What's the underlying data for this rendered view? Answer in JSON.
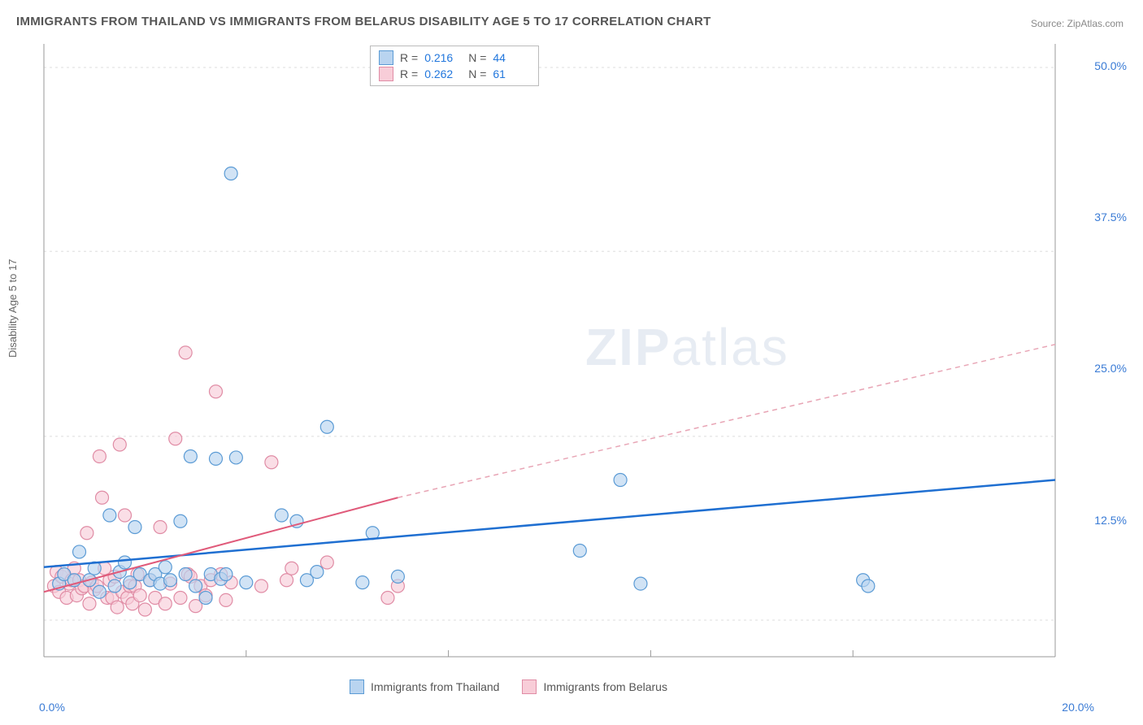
{
  "title": "IMMIGRANTS FROM THAILAND VS IMMIGRANTS FROM BELARUS DISABILITY AGE 5 TO 17 CORRELATION CHART",
  "source": "Source: ZipAtlas.com",
  "y_axis_label": "Disability Age 5 to 17",
  "watermark_a": "ZIP",
  "watermark_b": "atlas",
  "chart": {
    "type": "scatter",
    "background_color": "#ffffff",
    "grid_color": "#dddddd",
    "axis_color": "#999999",
    "xlim": [
      0,
      20
    ],
    "ylim": [
      0,
      52
    ],
    "x_ticks": [
      0.0,
      20.0
    ],
    "x_tick_labels": [
      "0.0%",
      "20.0%"
    ],
    "y_ticks": [
      12.5,
      25.0,
      37.5,
      50.0
    ],
    "y_tick_labels": [
      "12.5%",
      "25.0%",
      "37.5%",
      "50.0%"
    ],
    "y_minor_gridlines": [
      3.1,
      18.7,
      34.4,
      50.0
    ],
    "x_minor_ticks_count": 5,
    "legend_series": [
      {
        "label": "Immigrants from Thailand",
        "fill": "#b9d4f0",
        "stroke": "#5b9bd5"
      },
      {
        "label": "Immigrants from Belarus",
        "fill": "#f8cdd8",
        "stroke": "#e08ca5"
      }
    ],
    "stats": [
      {
        "r_label": "R =",
        "r": "0.216",
        "n_label": "N =",
        "n": "44",
        "fill": "#b9d4f0",
        "stroke": "#5b9bd5"
      },
      {
        "r_label": "R =",
        "r": "0.262",
        "n_label": "N =",
        "n": "61",
        "fill": "#f8cdd8",
        "stroke": "#e08ca5"
      }
    ],
    "marker_radius": 8,
    "marker_opacity": 0.65,
    "series": [
      {
        "name": "thailand",
        "fill": "#b9d4f0",
        "stroke": "#5b9bd5",
        "points": [
          [
            0.3,
            6.2
          ],
          [
            0.4,
            7.0
          ],
          [
            0.6,
            6.5
          ],
          [
            0.7,
            8.9
          ],
          [
            0.9,
            6.5
          ],
          [
            1.0,
            7.5
          ],
          [
            1.1,
            5.5
          ],
          [
            1.3,
            12.0
          ],
          [
            1.4,
            6.0
          ],
          [
            1.5,
            7.2
          ],
          [
            1.6,
            8.0
          ],
          [
            1.7,
            6.3
          ],
          [
            1.8,
            11.0
          ],
          [
            1.9,
            7.0
          ],
          [
            2.1,
            6.5
          ],
          [
            2.2,
            7.0
          ],
          [
            2.3,
            6.2
          ],
          [
            2.4,
            7.6
          ],
          [
            2.5,
            6.5
          ],
          [
            2.7,
            11.5
          ],
          [
            2.8,
            7.0
          ],
          [
            2.9,
            17.0
          ],
          [
            3.0,
            6.0
          ],
          [
            3.2,
            5.0
          ],
          [
            3.3,
            7.0
          ],
          [
            3.4,
            16.8
          ],
          [
            3.5,
            6.6
          ],
          [
            3.6,
            7.0
          ],
          [
            3.7,
            41.0
          ],
          [
            3.8,
            16.9
          ],
          [
            4.0,
            6.3
          ],
          [
            4.7,
            12.0
          ],
          [
            5.0,
            11.5
          ],
          [
            5.2,
            6.5
          ],
          [
            5.4,
            7.2
          ],
          [
            5.6,
            19.5
          ],
          [
            6.3,
            6.3
          ],
          [
            6.5,
            10.5
          ],
          [
            7.0,
            6.8
          ],
          [
            10.6,
            9.0
          ],
          [
            11.4,
            15.0
          ],
          [
            11.8,
            6.2
          ],
          [
            16.2,
            6.5
          ],
          [
            16.3,
            6.0
          ]
        ],
        "trend": {
          "x1": 0,
          "y1": 7.6,
          "x2": 20,
          "y2": 15.0,
          "color": "#1f6fd1",
          "width": 2.5
        }
      },
      {
        "name": "belarus",
        "fill": "#f8cdd8",
        "stroke": "#e08ca5",
        "points": [
          [
            0.2,
            6.0
          ],
          [
            0.25,
            7.2
          ],
          [
            0.3,
            5.5
          ],
          [
            0.35,
            6.8
          ],
          [
            0.4,
            7.0
          ],
          [
            0.45,
            5.0
          ],
          [
            0.5,
            6.2
          ],
          [
            0.55,
            6.5
          ],
          [
            0.6,
            7.5
          ],
          [
            0.65,
            5.2
          ],
          [
            0.7,
            6.5
          ],
          [
            0.75,
            5.8
          ],
          [
            0.8,
            6.0
          ],
          [
            0.85,
            10.5
          ],
          [
            0.9,
            4.5
          ],
          [
            0.95,
            6.3
          ],
          [
            1.0,
            5.7
          ],
          [
            1.05,
            6.0
          ],
          [
            1.1,
            17.0
          ],
          [
            1.15,
            13.5
          ],
          [
            1.2,
            7.5
          ],
          [
            1.25,
            5.0
          ],
          [
            1.3,
            6.5
          ],
          [
            1.35,
            5.0
          ],
          [
            1.4,
            6.8
          ],
          [
            1.45,
            4.2
          ],
          [
            1.5,
            18.0
          ],
          [
            1.55,
            5.5
          ],
          [
            1.6,
            12.0
          ],
          [
            1.65,
            5.0
          ],
          [
            1.7,
            6.0
          ],
          [
            1.75,
            4.5
          ],
          [
            1.8,
            6.0
          ],
          [
            1.85,
            7.0
          ],
          [
            1.9,
            5.2
          ],
          [
            2.0,
            4.0
          ],
          [
            2.1,
            6.5
          ],
          [
            2.2,
            5.0
          ],
          [
            2.3,
            11.0
          ],
          [
            2.4,
            4.5
          ],
          [
            2.5,
            6.2
          ],
          [
            2.6,
            18.5
          ],
          [
            2.7,
            5.0
          ],
          [
            2.8,
            25.8
          ],
          [
            2.85,
            7.0
          ],
          [
            2.9,
            6.8
          ],
          [
            3.0,
            4.3
          ],
          [
            3.1,
            6.0
          ],
          [
            3.2,
            5.2
          ],
          [
            3.3,
            6.5
          ],
          [
            3.4,
            22.5
          ],
          [
            3.5,
            7.0
          ],
          [
            3.6,
            4.8
          ],
          [
            3.7,
            6.3
          ],
          [
            4.3,
            6.0
          ],
          [
            4.5,
            16.5
          ],
          [
            4.8,
            6.5
          ],
          [
            4.9,
            7.5
          ],
          [
            5.6,
            8.0
          ],
          [
            6.8,
            5.0
          ],
          [
            7.0,
            6.0
          ]
        ],
        "trend_solid": {
          "x1": 0,
          "y1": 5.5,
          "x2": 7.0,
          "y2": 13.5,
          "color": "#e05a7a",
          "width": 2
        },
        "trend_dashed": {
          "x1": 7.0,
          "y1": 13.5,
          "x2": 20,
          "y2": 26.5,
          "color": "#e8a5b5",
          "width": 1.5,
          "dash": "6,5"
        }
      }
    ]
  }
}
